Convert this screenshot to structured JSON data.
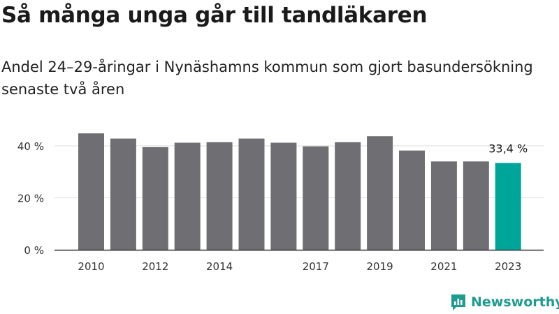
{
  "header": {
    "title": "Så många unga går till tandläkaren",
    "subtitle": "Andel 24–29-åringar i Nynäshamns kommun som gjort basundersökning senaste två åren"
  },
  "brand": {
    "name": "Newsworthy"
  },
  "colors": {
    "bar": "#6e6e73",
    "highlight": "#00a59a",
    "grid": "#dddddd",
    "axis": "#333333",
    "brand": "#1f9b8f"
  },
  "chart_data": {
    "type": "bar",
    "categories": [
      "2010",
      "2011",
      "2012",
      "2013",
      "2014",
      "2015",
      "2016",
      "2017",
      "2018",
      "2019",
      "2020",
      "2021",
      "2022",
      "2023"
    ],
    "values": [
      44.8,
      42.8,
      39.5,
      41.2,
      41.4,
      42.8,
      41.2,
      39.8,
      41.4,
      43.7,
      38.2,
      34.0,
      34.0,
      33.4
    ],
    "tick_labels": [
      "2010",
      "",
      "2012",
      "",
      "2014",
      "",
      "",
      "2017",
      "",
      "2019",
      "",
      "2021",
      "",
      "2023"
    ],
    "ylim": [
      0,
      50
    ],
    "yticks": [
      0,
      20,
      40
    ],
    "ytick_labels": [
      "0 %",
      "20 %",
      "40 %"
    ],
    "highlight_index": 13,
    "highlight_label": "33,4 %",
    "grid": true,
    "xlabel": "",
    "ylabel": ""
  }
}
